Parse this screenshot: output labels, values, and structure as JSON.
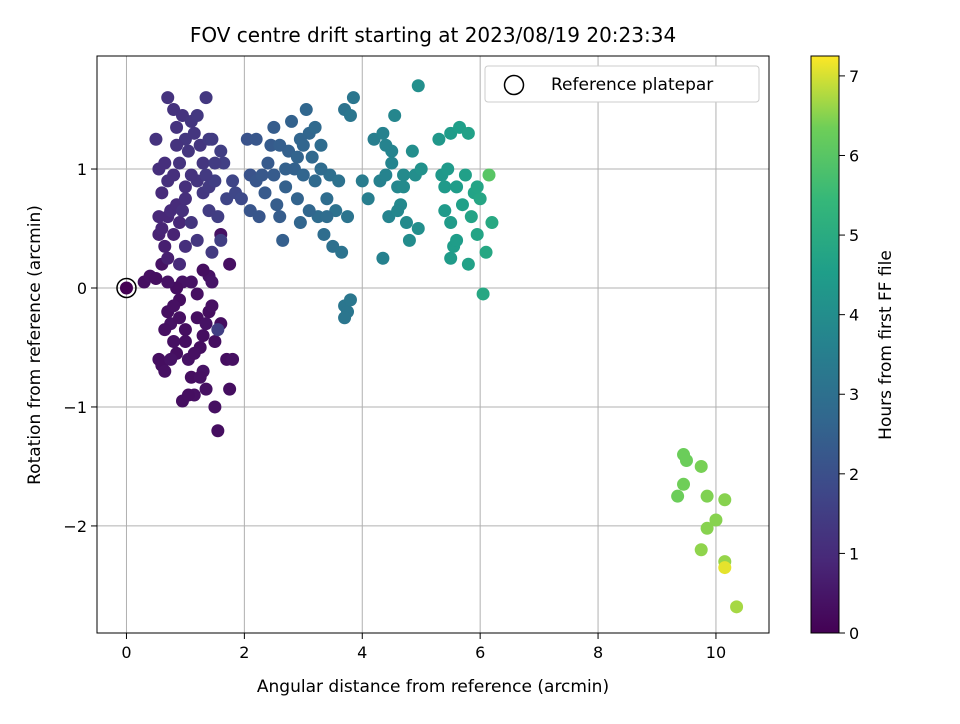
{
  "chart_data": {
    "type": "scatter",
    "title": "FOV centre drift starting at 2023/08/19 20:23:34",
    "xlabel": "Angular distance from reference (arcmin)",
    "ylabel": "Rotation from reference (arcmin)",
    "xlim": [
      -0.5,
      10.9
    ],
    "ylim": [
      -2.9,
      1.95
    ],
    "xticks": [
      0,
      2,
      4,
      6,
      8,
      10
    ],
    "yticks": [
      -2,
      -1,
      0,
      1
    ],
    "xtick_labels": [
      "0",
      "2",
      "4",
      "6",
      "8",
      "10"
    ],
    "ytick_labels": [
      "−2",
      "−1",
      "0",
      "1"
    ],
    "grid": true,
    "legend": {
      "position": "top-right",
      "entries": [
        "Reference platepar"
      ]
    },
    "reference_point": {
      "x": 0,
      "y": 0
    },
    "colorbar": {
      "label": "Hours from first FF file",
      "range": [
        0,
        7.25
      ],
      "ticks": [
        0,
        1,
        2,
        3,
        4,
        5,
        6,
        7
      ],
      "tick_labels": [
        "0",
        "1",
        "2",
        "3",
        "4",
        "5",
        "6",
        "7"
      ],
      "colormap": "viridis"
    },
    "points": [
      {
        "x": 0.0,
        "y": 0.0,
        "c": 0.0
      },
      {
        "x": 0.3,
        "y": 0.05,
        "c": 0.3
      },
      {
        "x": 0.4,
        "y": 0.1,
        "c": 0.35
      },
      {
        "x": 0.5,
        "y": 0.08,
        "c": 0.3
      },
      {
        "x": 0.55,
        "y": -0.6,
        "c": 0.3
      },
      {
        "x": 0.6,
        "y": -0.65,
        "c": 0.3
      },
      {
        "x": 0.65,
        "y": -0.7,
        "c": 0.35
      },
      {
        "x": 0.7,
        "y": -0.2,
        "c": 0.3
      },
      {
        "x": 0.75,
        "y": -0.3,
        "c": 0.4
      },
      {
        "x": 0.8,
        "y": -0.45,
        "c": 0.35
      },
      {
        "x": 0.85,
        "y": -0.55,
        "c": 0.3
      },
      {
        "x": 0.9,
        "y": -0.1,
        "c": 0.3
      },
      {
        "x": 0.95,
        "y": 0.05,
        "c": 0.4
      },
      {
        "x": 1.0,
        "y": -0.35,
        "c": 0.3
      },
      {
        "x": 1.05,
        "y": -0.6,
        "c": 0.4
      },
      {
        "x": 1.1,
        "y": -0.75,
        "c": 0.3
      },
      {
        "x": 1.15,
        "y": -0.9,
        "c": 0.35
      },
      {
        "x": 1.2,
        "y": -0.25,
        "c": 0.3
      },
      {
        "x": 1.25,
        "y": -0.5,
        "c": 0.3
      },
      {
        "x": 1.3,
        "y": -0.7,
        "c": 0.4
      },
      {
        "x": 1.35,
        "y": -0.85,
        "c": 0.35
      },
      {
        "x": 1.4,
        "y": -0.2,
        "c": 0.3
      },
      {
        "x": 1.5,
        "y": -1.0,
        "c": 0.35
      },
      {
        "x": 1.55,
        "y": -1.2,
        "c": 0.3
      },
      {
        "x": 1.6,
        "y": -0.3,
        "c": 0.3
      },
      {
        "x": 1.7,
        "y": -0.6,
        "c": 0.3
      },
      {
        "x": 1.75,
        "y": -0.85,
        "c": 0.3
      },
      {
        "x": 1.8,
        "y": -0.6,
        "c": 0.35
      },
      {
        "x": 1.75,
        "y": 0.2,
        "c": 0.35
      },
      {
        "x": 1.6,
        "y": 0.45,
        "c": 0.4
      },
      {
        "x": 1.4,
        "y": 0.1,
        "c": 0.4
      },
      {
        "x": 1.3,
        "y": 0.15,
        "c": 0.3
      },
      {
        "x": 1.2,
        "y": -0.05,
        "c": 0.35
      },
      {
        "x": 1.1,
        "y": 0.05,
        "c": 0.4
      },
      {
        "x": 0.9,
        "y": -0.25,
        "c": 0.35
      },
      {
        "x": 0.85,
        "y": 0.0,
        "c": 0.3
      },
      {
        "x": 0.7,
        "y": 0.05,
        "c": 0.4
      },
      {
        "x": 0.6,
        "y": 0.2,
        "c": 0.4
      },
      {
        "x": 0.65,
        "y": -0.35,
        "c": 0.35
      },
      {
        "x": 0.75,
        "y": -0.6,
        "c": 0.4
      },
      {
        "x": 0.8,
        "y": -0.15,
        "c": 0.35
      },
      {
        "x": 1.0,
        "y": -0.45,
        "c": 0.3
      },
      {
        "x": 1.15,
        "y": -0.55,
        "c": 0.35
      },
      {
        "x": 1.3,
        "y": -0.4,
        "c": 0.3
      },
      {
        "x": 1.45,
        "y": -0.15,
        "c": 0.35
      },
      {
        "x": 1.5,
        "y": -0.45,
        "c": 0.3
      },
      {
        "x": 1.55,
        "y": -0.35,
        "c": 1.5
      },
      {
        "x": 1.45,
        "y": 0.05,
        "c": 0.45
      },
      {
        "x": 1.35,
        "y": -0.3,
        "c": 0.4
      },
      {
        "x": 0.95,
        "y": -0.95,
        "c": 0.3
      },
      {
        "x": 1.05,
        "y": -0.9,
        "c": 0.3
      },
      {
        "x": 1.25,
        "y": -0.75,
        "c": 0.35
      },
      {
        "x": 0.55,
        "y": 0.45,
        "c": 0.8
      },
      {
        "x": 0.6,
        "y": 0.5,
        "c": 0.85
      },
      {
        "x": 0.7,
        "y": 0.6,
        "c": 0.9
      },
      {
        "x": 0.75,
        "y": 0.65,
        "c": 1.0
      },
      {
        "x": 0.85,
        "y": 0.7,
        "c": 1.0
      },
      {
        "x": 0.9,
        "y": 0.55,
        "c": 0.9
      },
      {
        "x": 0.95,
        "y": 0.65,
        "c": 1.1
      },
      {
        "x": 1.0,
        "y": 0.75,
        "c": 1.1
      },
      {
        "x": 0.8,
        "y": 0.45,
        "c": 0.8
      },
      {
        "x": 0.65,
        "y": 0.35,
        "c": 0.7
      },
      {
        "x": 0.7,
        "y": 0.25,
        "c": 0.7
      },
      {
        "x": 0.55,
        "y": 0.6,
        "c": 0.9
      },
      {
        "x": 0.6,
        "y": 0.8,
        "c": 1.0
      },
      {
        "x": 0.7,
        "y": 0.9,
        "c": 1.1
      },
      {
        "x": 0.8,
        "y": 0.95,
        "c": 1.1
      },
      {
        "x": 0.55,
        "y": 1.0,
        "c": 1.1
      },
      {
        "x": 0.5,
        "y": 1.25,
        "c": 1.2
      },
      {
        "x": 0.65,
        "y": 1.05,
        "c": 1.1
      },
      {
        "x": 0.7,
        "y": 1.6,
        "c": 1.2
      },
      {
        "x": 0.8,
        "y": 1.5,
        "c": 1.2
      },
      {
        "x": 0.85,
        "y": 1.35,
        "c": 1.2
      },
      {
        "x": 0.95,
        "y": 1.45,
        "c": 1.2
      },
      {
        "x": 1.0,
        "y": 1.25,
        "c": 1.3
      },
      {
        "x": 1.05,
        "y": 1.15,
        "c": 1.25
      },
      {
        "x": 1.1,
        "y": 1.4,
        "c": 1.3
      },
      {
        "x": 1.15,
        "y": 1.3,
        "c": 1.3
      },
      {
        "x": 1.2,
        "y": 1.45,
        "c": 1.35
      },
      {
        "x": 1.25,
        "y": 1.2,
        "c": 1.3
      },
      {
        "x": 1.35,
        "y": 1.6,
        "c": 1.35
      },
      {
        "x": 1.4,
        "y": 1.25,
        "c": 1.4
      },
      {
        "x": 1.3,
        "y": 1.05,
        "c": 1.3
      },
      {
        "x": 1.2,
        "y": 0.9,
        "c": 1.25
      },
      {
        "x": 1.1,
        "y": 0.95,
        "c": 1.2
      },
      {
        "x": 1.0,
        "y": 0.85,
        "c": 1.1
      },
      {
        "x": 0.9,
        "y": 1.05,
        "c": 1.2
      },
      {
        "x": 0.85,
        "y": 1.2,
        "c": 1.2
      },
      {
        "x": 1.3,
        "y": 0.8,
        "c": 1.35
      },
      {
        "x": 1.4,
        "y": 0.85,
        "c": 1.4
      },
      {
        "x": 1.5,
        "y": 0.9,
        "c": 1.5
      },
      {
        "x": 1.6,
        "y": 1.15,
        "c": 1.5
      },
      {
        "x": 1.65,
        "y": 1.05,
        "c": 1.55
      },
      {
        "x": 1.55,
        "y": 0.6,
        "c": 1.5
      },
      {
        "x": 1.6,
        "y": 0.4,
        "c": 1.5
      },
      {
        "x": 1.45,
        "y": 0.3,
        "c": 1.4
      },
      {
        "x": 1.2,
        "y": 0.4,
        "c": 1.3
      },
      {
        "x": 1.1,
        "y": 0.55,
        "c": 1.25
      },
      {
        "x": 1.0,
        "y": 0.35,
        "c": 1.1
      },
      {
        "x": 0.9,
        "y": 0.2,
        "c": 1.0
      },
      {
        "x": 1.7,
        "y": 0.75,
        "c": 1.7
      },
      {
        "x": 1.8,
        "y": 0.9,
        "c": 1.7
      },
      {
        "x": 1.85,
        "y": 0.8,
        "c": 1.75
      },
      {
        "x": 1.95,
        "y": 0.75,
        "c": 1.8
      },
      {
        "x": 1.4,
        "y": 0.65,
        "c": 1.45
      },
      {
        "x": 1.35,
        "y": 0.95,
        "c": 1.4
      },
      {
        "x": 1.5,
        "y": 1.05,
        "c": 1.45
      },
      {
        "x": 1.45,
        "y": 1.25,
        "c": 1.45
      },
      {
        "x": 2.05,
        "y": 1.25,
        "c": 2.1
      },
      {
        "x": 2.1,
        "y": 0.95,
        "c": 2.1
      },
      {
        "x": 2.2,
        "y": 0.9,
        "c": 2.2
      },
      {
        "x": 2.1,
        "y": 0.65,
        "c": 2.15
      },
      {
        "x": 2.25,
        "y": 0.6,
        "c": 2.2
      },
      {
        "x": 2.35,
        "y": 0.8,
        "c": 2.3
      },
      {
        "x": 2.4,
        "y": 1.05,
        "c": 2.3
      },
      {
        "x": 2.45,
        "y": 1.2,
        "c": 2.35
      },
      {
        "x": 2.5,
        "y": 1.35,
        "c": 2.4
      },
      {
        "x": 2.5,
        "y": 0.95,
        "c": 2.35
      },
      {
        "x": 2.55,
        "y": 0.7,
        "c": 2.4
      },
      {
        "x": 2.6,
        "y": 0.6,
        "c": 2.4
      },
      {
        "x": 2.65,
        "y": 0.4,
        "c": 2.45
      },
      {
        "x": 2.7,
        "y": 0.85,
        "c": 2.5
      },
      {
        "x": 2.75,
        "y": 1.15,
        "c": 2.5
      },
      {
        "x": 2.8,
        "y": 1.4,
        "c": 2.55
      },
      {
        "x": 2.85,
        "y": 1.0,
        "c": 2.55
      },
      {
        "x": 2.9,
        "y": 0.75,
        "c": 2.6
      },
      {
        "x": 2.95,
        "y": 0.55,
        "c": 2.65
      },
      {
        "x": 3.0,
        "y": 1.2,
        "c": 2.65
      },
      {
        "x": 3.05,
        "y": 1.5,
        "c": 2.7
      },
      {
        "x": 3.1,
        "y": 1.3,
        "c": 2.7
      },
      {
        "x": 3.15,
        "y": 1.1,
        "c": 2.75
      },
      {
        "x": 3.2,
        "y": 0.9,
        "c": 2.8
      },
      {
        "x": 3.25,
        "y": 0.6,
        "c": 2.85
      },
      {
        "x": 3.3,
        "y": 1.2,
        "c": 2.85
      },
      {
        "x": 3.35,
        "y": 0.45,
        "c": 2.9
      },
      {
        "x": 3.4,
        "y": 0.75,
        "c": 2.9
      },
      {
        "x": 3.45,
        "y": 0.95,
        "c": 2.95
      },
      {
        "x": 3.5,
        "y": 0.35,
        "c": 3.0
      },
      {
        "x": 3.55,
        "y": 0.65,
        "c": 3.05
      },
      {
        "x": 3.6,
        "y": 0.9,
        "c": 3.05
      },
      {
        "x": 3.65,
        "y": 0.3,
        "c": 3.1
      },
      {
        "x": 3.7,
        "y": 1.5,
        "c": 3.1
      },
      {
        "x": 3.75,
        "y": 0.6,
        "c": 3.15
      },
      {
        "x": 3.8,
        "y": 1.45,
        "c": 3.2
      },
      {
        "x": 3.85,
        "y": 1.6,
        "c": 3.2
      },
      {
        "x": 2.9,
        "y": 1.1,
        "c": 2.6
      },
      {
        "x": 3.0,
        "y": 0.95,
        "c": 2.65
      },
      {
        "x": 3.1,
        "y": 0.65,
        "c": 2.7
      },
      {
        "x": 2.7,
        "y": 1.0,
        "c": 2.5
      },
      {
        "x": 2.6,
        "y": 1.2,
        "c": 2.45
      },
      {
        "x": 2.3,
        "y": 0.95,
        "c": 2.25
      },
      {
        "x": 2.2,
        "y": 1.25,
        "c": 2.2
      },
      {
        "x": 3.3,
        "y": 1.0,
        "c": 2.85
      },
      {
        "x": 3.2,
        "y": 1.35,
        "c": 2.8
      },
      {
        "x": 2.95,
        "y": 1.25,
        "c": 2.65
      },
      {
        "x": 3.4,
        "y": 0.6,
        "c": 2.9
      },
      {
        "x": 3.7,
        "y": -0.15,
        "c": 3.2
      },
      {
        "x": 3.75,
        "y": -0.2,
        "c": 3.2
      },
      {
        "x": 3.8,
        "y": -0.1,
        "c": 3.25
      },
      {
        "x": 3.7,
        "y": -0.25,
        "c": 3.2
      },
      {
        "x": 4.0,
        "y": 0.9,
        "c": 3.4
      },
      {
        "x": 4.1,
        "y": 0.75,
        "c": 3.5
      },
      {
        "x": 4.2,
        "y": 1.25,
        "c": 3.5
      },
      {
        "x": 4.3,
        "y": 0.9,
        "c": 3.6
      },
      {
        "x": 4.35,
        "y": 1.3,
        "c": 3.6
      },
      {
        "x": 4.4,
        "y": 0.95,
        "c": 3.65
      },
      {
        "x": 4.45,
        "y": 0.6,
        "c": 3.7
      },
      {
        "x": 4.5,
        "y": 1.15,
        "c": 3.7
      },
      {
        "x": 4.55,
        "y": 1.45,
        "c": 3.75
      },
      {
        "x": 4.6,
        "y": 0.85,
        "c": 3.8
      },
      {
        "x": 4.65,
        "y": 0.7,
        "c": 3.85
      },
      {
        "x": 4.7,
        "y": 0.95,
        "c": 3.9
      },
      {
        "x": 4.75,
        "y": 0.55,
        "c": 3.9
      },
      {
        "x": 4.8,
        "y": 0.4,
        "c": 3.95
      },
      {
        "x": 4.85,
        "y": 1.15,
        "c": 4.0
      },
      {
        "x": 4.9,
        "y": 0.95,
        "c": 4.0
      },
      {
        "x": 4.95,
        "y": 0.5,
        "c": 4.05
      },
      {
        "x": 5.0,
        "y": 1.0,
        "c": 4.1
      },
      {
        "x": 4.95,
        "y": 1.7,
        "c": 4.05
      },
      {
        "x": 4.35,
        "y": 0.25,
        "c": 3.6
      },
      {
        "x": 4.6,
        "y": 0.65,
        "c": 3.8
      },
      {
        "x": 4.7,
        "y": 0.85,
        "c": 3.9
      },
      {
        "x": 4.4,
        "y": 1.2,
        "c": 3.65
      },
      {
        "x": 4.5,
        "y": 1.05,
        "c": 3.7
      },
      {
        "x": 5.3,
        "y": 1.25,
        "c": 4.3
      },
      {
        "x": 5.35,
        "y": 0.95,
        "c": 4.35
      },
      {
        "x": 5.4,
        "y": 0.65,
        "c": 4.4
      },
      {
        "x": 5.45,
        "y": 1.0,
        "c": 4.4
      },
      {
        "x": 5.5,
        "y": 1.3,
        "c": 4.45
      },
      {
        "x": 5.5,
        "y": 0.55,
        "c": 4.45
      },
      {
        "x": 5.55,
        "y": 0.35,
        "c": 4.5
      },
      {
        "x": 5.6,
        "y": 0.85,
        "c": 4.5
      },
      {
        "x": 5.65,
        "y": 1.35,
        "c": 4.55
      },
      {
        "x": 5.7,
        "y": 0.7,
        "c": 4.6
      },
      {
        "x": 5.75,
        "y": 0.95,
        "c": 4.6
      },
      {
        "x": 5.8,
        "y": 0.2,
        "c": 4.65
      },
      {
        "x": 5.85,
        "y": 0.6,
        "c": 4.7
      },
      {
        "x": 5.9,
        "y": 0.8,
        "c": 4.7
      },
      {
        "x": 5.95,
        "y": 0.45,
        "c": 4.75
      },
      {
        "x": 6.0,
        "y": 0.75,
        "c": 4.8
      },
      {
        "x": 6.05,
        "y": -0.05,
        "c": 4.85
      },
      {
        "x": 6.1,
        "y": 0.3,
        "c": 4.85
      },
      {
        "x": 6.2,
        "y": 0.55,
        "c": 4.9
      },
      {
        "x": 5.5,
        "y": 0.25,
        "c": 4.45
      },
      {
        "x": 5.6,
        "y": 0.4,
        "c": 4.5
      },
      {
        "x": 5.8,
        "y": 1.3,
        "c": 4.65
      },
      {
        "x": 5.95,
        "y": 0.85,
        "c": 4.75
      },
      {
        "x": 5.4,
        "y": 0.85,
        "c": 4.4
      },
      {
        "x": 6.15,
        "y": 0.95,
        "c": 6.0
      },
      {
        "x": 9.45,
        "y": -1.4,
        "c": 6.3
      },
      {
        "x": 9.5,
        "y": -1.45,
        "c": 6.3
      },
      {
        "x": 9.75,
        "y": -1.5,
        "c": 6.4
      },
      {
        "x": 9.45,
        "y": -1.65,
        "c": 6.35
      },
      {
        "x": 9.35,
        "y": -1.75,
        "c": 6.3
      },
      {
        "x": 9.85,
        "y": -1.75,
        "c": 6.45
      },
      {
        "x": 10.15,
        "y": -1.78,
        "c": 6.5
      },
      {
        "x": 10.0,
        "y": -1.95,
        "c": 6.5
      },
      {
        "x": 9.85,
        "y": -2.02,
        "c": 6.5
      },
      {
        "x": 9.75,
        "y": -2.2,
        "c": 6.55
      },
      {
        "x": 10.15,
        "y": -2.3,
        "c": 6.6
      },
      {
        "x": 10.15,
        "y": -2.35,
        "c": 7.1
      },
      {
        "x": 10.35,
        "y": -2.68,
        "c": 6.7
      }
    ]
  }
}
